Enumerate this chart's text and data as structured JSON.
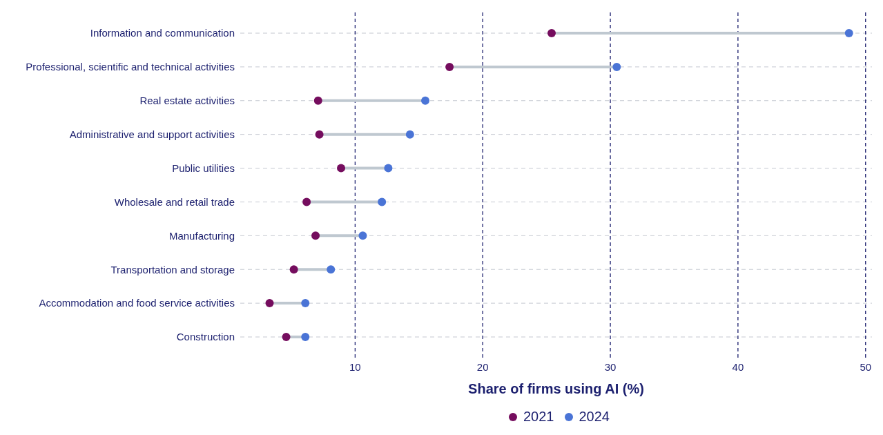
{
  "chart_data": {
    "type": "scatter",
    "orientation": "horizontal",
    "xlabel": "Share of firms using AI (%)",
    "categories": [
      "Information and communication",
      "Professional, scientific and technical activities",
      "Real estate activities",
      "Administrative and support activities",
      "Public utilities",
      "Wholesale and retail trade",
      "Manufacturing",
      "Transportation and storage",
      "Accommodation and food service activities",
      "Construction"
    ],
    "series": [
      {
        "name": "2021",
        "color": "#750d5e",
        "values": [
          25.4,
          17.4,
          7.1,
          7.2,
          8.9,
          6.2,
          6.9,
          5.2,
          3.3,
          4.6
        ]
      },
      {
        "name": "2024",
        "color": "#4a74d6",
        "values": [
          48.7,
          30.5,
          15.5,
          14.3,
          12.6,
          12.1,
          10.6,
          8.1,
          6.1,
          6.1
        ]
      }
    ],
    "xlim": [
      1,
      50.5
    ],
    "xticks": [
      10,
      20,
      30,
      40,
      50
    ],
    "grid": true,
    "legend": "bottom",
    "marker": "circle"
  }
}
